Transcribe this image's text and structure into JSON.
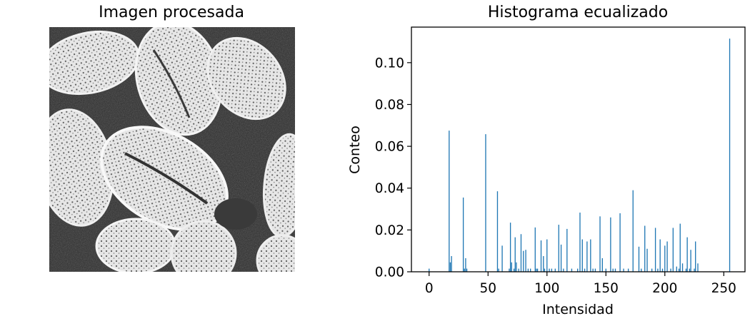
{
  "panels": {
    "image": {
      "title": "Imagen procesada",
      "description_icon": "pollen-grains-sem-image"
    }
  },
  "chart_data": {
    "type": "bar",
    "title": "Histograma ecualizado",
    "xlabel": "Intensidad",
    "ylabel": "Conteo",
    "xlim": [
      -15,
      268
    ],
    "ylim": [
      0,
      0.117
    ],
    "xticks": [
      0,
      50,
      100,
      150,
      200,
      250
    ],
    "yticks": [
      0.0,
      0.02,
      0.04,
      0.06,
      0.08,
      0.1
    ],
    "ytick_labels": [
      "0.00",
      "0.02",
      "0.04",
      "0.06",
      "0.08",
      "0.10"
    ],
    "bar_color": "#1f77b4",
    "grid": false,
    "x": [
      0,
      17,
      18,
      19,
      29,
      30,
      31,
      32,
      48,
      58,
      59,
      62,
      68,
      69,
      70,
      72,
      73,
      74,
      76,
      78,
      80,
      82,
      84,
      86,
      90,
      91,
      92,
      95,
      97,
      98,
      100,
      102,
      104,
      107,
      110,
      112,
      114,
      117,
      121,
      126,
      128,
      130,
      132,
      134,
      137,
      139,
      141,
      145,
      147,
      150,
      154,
      156,
      158,
      162,
      165,
      169,
      173,
      178,
      180,
      183,
      185,
      189,
      192,
      194,
      196,
      198,
      200,
      202,
      205,
      207,
      210,
      212,
      213,
      215,
      218,
      219,
      221,
      222,
      225,
      226,
      228,
      255
    ],
    "values": [
      0.0015,
      0.0675,
      0.0045,
      0.0075,
      0.0355,
      0.0015,
      0.0065,
      0.0015,
      0.0658,
      0.0385,
      0.0015,
      0.0125,
      0.0015,
      0.0235,
      0.0045,
      0.0015,
      0.0165,
      0.0045,
      0.0015,
      0.018,
      0.01,
      0.0105,
      0.0015,
      0.0015,
      0.0212,
      0.0015,
      0.0015,
      0.015,
      0.0075,
      0.0015,
      0.0155,
      0.0015,
      0.0015,
      0.0015,
      0.0225,
      0.013,
      0.0015,
      0.0205,
      0.0015,
      0.0015,
      0.0283,
      0.0155,
      0.0015,
      0.0145,
      0.0155,
      0.0015,
      0.0015,
      0.0265,
      0.0065,
      0.0015,
      0.026,
      0.0015,
      0.0015,
      0.028,
      0.0015,
      0.0015,
      0.039,
      0.012,
      0.0015,
      0.022,
      0.011,
      0.0015,
      0.021,
      0.0015,
      0.0155,
      0.0015,
      0.0125,
      0.0145,
      0.0015,
      0.021,
      0.0025,
      0.0015,
      0.023,
      0.004,
      0.0015,
      0.0165,
      0.0015,
      0.0105,
      0.0015,
      0.0145,
      0.004,
      0.1115
    ]
  }
}
